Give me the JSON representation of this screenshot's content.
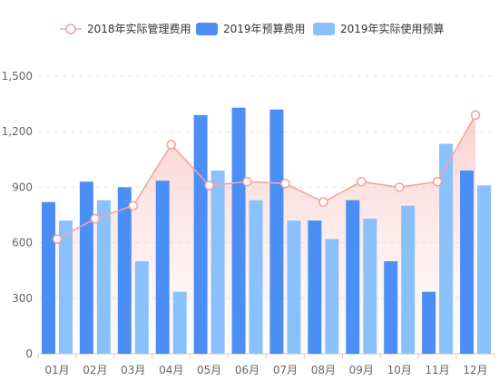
{
  "chart_data": {
    "type": "bar",
    "categories": [
      "01月",
      "02月",
      "03月",
      "04月",
      "05月",
      "06月",
      "07月",
      "08月",
      "09月",
      "10月",
      "11月",
      "12月"
    ],
    "y_ticks": [
      "0",
      "300",
      "600",
      "900",
      "1,200",
      "1,500"
    ],
    "ylim": [
      0,
      1500
    ],
    "grid": true,
    "legend_position": "top-center",
    "series": [
      {
        "name": "2018年实际管理费用",
        "kind": "line-area",
        "color": "#f4a5a0",
        "values": [
          620,
          730,
          800,
          1130,
          910,
          930,
          920,
          820,
          930,
          900,
          930,
          1290
        ]
      },
      {
        "name": "2019年预算费用",
        "kind": "bar",
        "color": "#4b8ef5",
        "values": [
          820,
          930,
          900,
          935,
          1290,
          1330,
          1320,
          720,
          830,
          500,
          335,
          990
        ]
      },
      {
        "name": "2019年实际使用预算",
        "kind": "bar",
        "color": "#8ac1fb",
        "values": [
          720,
          830,
          500,
          335,
          990,
          830,
          720,
          620,
          730,
          800,
          1135,
          910
        ]
      }
    ]
  }
}
